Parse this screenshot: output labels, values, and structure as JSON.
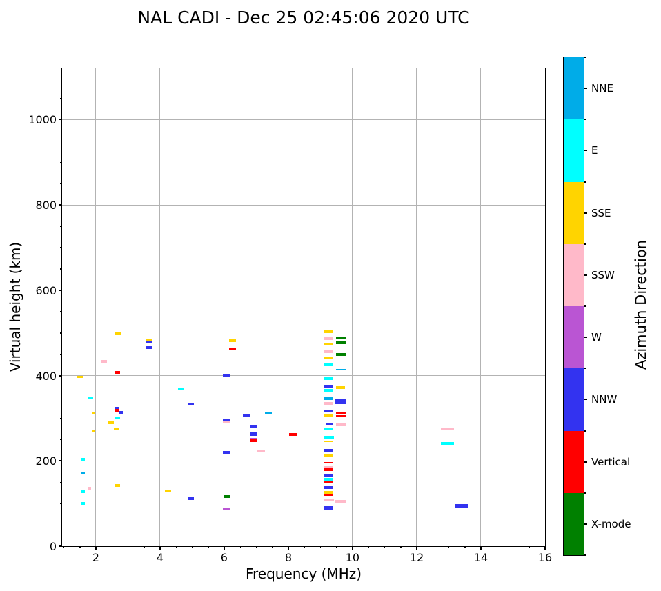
{
  "chart_data": {
    "type": "scatter",
    "title": "NAL CADI - Dec 25 02:45:06 2020 UTC",
    "xlabel": "Frequency (MHz)",
    "ylabel": "Virtual height (km)",
    "xlim": [
      0.95,
      16
    ],
    "ylim": [
      0,
      1120
    ],
    "x_ticks": [
      2,
      4,
      6,
      8,
      10,
      12,
      14,
      16
    ],
    "y_ticks": [
      0,
      200,
      400,
      600,
      800,
      1000
    ],
    "x_minor_step": 0.5,
    "y_minor_step": 50,
    "grid": true,
    "legend_position": "right-colorbar",
    "colorbar": {
      "label": "Azimuth Direction",
      "categories": [
        {
          "key": "NNE",
          "label": "NNE",
          "color": "#00ACE8"
        },
        {
          "key": "E",
          "label": "E",
          "color": "#00FFFF"
        },
        {
          "key": "SSE",
          "label": "SSE",
          "color": "#FFD400"
        },
        {
          "key": "SSW",
          "label": "SSW",
          "color": "#FFB9C9"
        },
        {
          "key": "W",
          "label": "W",
          "color": "#BA55D3"
        },
        {
          "key": "NNW",
          "label": "NNW",
          "color": "#3333F0"
        },
        {
          "key": "V",
          "label": "Vertical",
          "color": "#FF0000"
        },
        {
          "key": "X",
          "label": "X-mode",
          "color": "#008000"
        }
      ]
    },
    "point_format": [
      "freq_mhz",
      "height_km",
      "azimuth_key",
      "width_px",
      "thickness_px"
    ],
    "points": [
      [
        2.67,
        497,
        "SSE",
        9,
        4
      ],
      [
        2.27,
        433,
        "SSW",
        8,
        4
      ],
      [
        2.67,
        407,
        "V",
        8,
        4
      ],
      [
        1.51,
        396,
        "SSE",
        8,
        3
      ],
      [
        1.83,
        347,
        "E",
        8,
        4
      ],
      [
        2.67,
        323,
        "NNW",
        6,
        5
      ],
      [
        2.66,
        318,
        "V",
        6,
        5
      ],
      [
        2.78,
        313,
        "NNW",
        6,
        4
      ],
      [
        1.94,
        311,
        "SSE",
        4,
        3
      ],
      [
        2.67,
        300,
        "E",
        7,
        4
      ],
      [
        2.47,
        289,
        "SSE",
        8,
        4
      ],
      [
        2.65,
        275,
        "SSE",
        8,
        4
      ],
      [
        1.94,
        270,
        "SSE",
        4,
        3
      ],
      [
        1.61,
        204,
        "E",
        5,
        4
      ],
      [
        1.61,
        172,
        "NNE",
        5,
        4
      ],
      [
        2.67,
        143,
        "SSE",
        8,
        4
      ],
      [
        1.8,
        135,
        "SSW",
        5,
        4
      ],
      [
        1.61,
        127,
        "E",
        5,
        4
      ],
      [
        1.61,
        100,
        "E",
        5,
        5
      ],
      [
        3.66,
        483,
        "SSE",
        9,
        4
      ],
      [
        3.66,
        478,
        "NNW",
        9,
        4
      ],
      [
        3.66,
        465,
        "NNW",
        9,
        4
      ],
      [
        4.65,
        368,
        "E",
        9,
        4
      ],
      [
        4.97,
        333,
        "NNW",
        9,
        4
      ],
      [
        4.24,
        130,
        "SSE",
        9,
        4
      ],
      [
        4.97,
        111,
        "NNW",
        9,
        4
      ],
      [
        6.26,
        481,
        "SSE",
        10,
        4
      ],
      [
        6.26,
        463,
        "V",
        10,
        4
      ],
      [
        6.06,
        400,
        "NNW",
        10,
        4
      ],
      [
        7.38,
        312,
        "NNE",
        10,
        3
      ],
      [
        6.69,
        306,
        "NNW",
        10,
        4
      ],
      [
        6.06,
        296,
        "NNW",
        10,
        4
      ],
      [
        6.06,
        292,
        "SSW",
        10,
        3
      ],
      [
        6.92,
        280,
        "NNW",
        11,
        5
      ],
      [
        6.92,
        262,
        "NNW",
        11,
        5
      ],
      [
        6.9,
        250,
        "W",
        10,
        4
      ],
      [
        6.92,
        247,
        "V",
        11,
        4
      ],
      [
        7.16,
        222,
        "SSW",
        11,
        3
      ],
      [
        6.06,
        220,
        "NNW",
        10,
        4
      ],
      [
        8.15,
        262,
        "V",
        12,
        4
      ],
      [
        6.09,
        116,
        "X",
        10,
        4
      ],
      [
        6.06,
        88,
        "W",
        10,
        4
      ],
      [
        9.25,
        502,
        "SSE",
        13,
        4
      ],
      [
        9.25,
        486,
        "SSW",
        12,
        4
      ],
      [
        9.25,
        473,
        "SSE",
        12,
        2
      ],
      [
        9.25,
        455,
        "SSW",
        12,
        4
      ],
      [
        9.25,
        441,
        "SSE",
        13,
        4
      ],
      [
        9.25,
        425,
        "E",
        14,
        4
      ],
      [
        9.25,
        393,
        "E",
        14,
        4
      ],
      [
        9.25,
        375,
        "NNW",
        13,
        4
      ],
      [
        9.25,
        365,
        "E",
        14,
        4
      ],
      [
        9.25,
        346,
        "NNE",
        14,
        4
      ],
      [
        9.25,
        335,
        "SSW",
        13,
        4
      ],
      [
        9.25,
        317,
        "NNW",
        13,
        4
      ],
      [
        9.25,
        306,
        "SSE",
        13,
        4
      ],
      [
        9.27,
        286,
        "NNW",
        10,
        4
      ],
      [
        9.25,
        275,
        "E",
        13,
        4
      ],
      [
        9.25,
        256,
        "E",
        15,
        4
      ],
      [
        9.25,
        245,
        "SSE",
        13,
        2
      ],
      [
        9.25,
        225,
        "NNW",
        14,
        4
      ],
      [
        9.25,
        214,
        "SSE",
        14,
        4
      ],
      [
        9.25,
        195,
        "V",
        13,
        2
      ],
      [
        9.25,
        185,
        "SSW",
        14,
        4
      ],
      [
        9.25,
        179,
        "V",
        14,
        4
      ],
      [
        9.25,
        167,
        "NNW",
        13,
        4
      ],
      [
        9.25,
        156,
        "E",
        14,
        4
      ],
      [
        9.25,
        150,
        "V",
        13,
        4
      ],
      [
        9.25,
        138,
        "NNW",
        13,
        4
      ],
      [
        9.25,
        126,
        "SSE",
        13,
        4
      ],
      [
        9.25,
        119,
        "V",
        13,
        2
      ],
      [
        9.25,
        108,
        "SSW",
        15,
        4
      ],
      [
        9.25,
        90,
        "NNW",
        14,
        5
      ],
      [
        9.63,
        488,
        "X",
        14,
        4
      ],
      [
        9.63,
        476,
        "X",
        14,
        4
      ],
      [
        9.63,
        450,
        "X",
        14,
        4
      ],
      [
        9.63,
        413,
        "NNE",
        14,
        2
      ],
      [
        9.63,
        372,
        "SSE",
        13,
        4
      ],
      [
        9.63,
        343,
        "NNW",
        15,
        4
      ],
      [
        9.63,
        336,
        "NNW",
        15,
        4
      ],
      [
        9.63,
        312,
        "V",
        14,
        4
      ],
      [
        9.63,
        306,
        "V",
        14,
        2
      ],
      [
        9.63,
        285,
        "SSW",
        14,
        4
      ],
      [
        9.63,
        105,
        "SSW",
        15,
        4
      ],
      [
        12.95,
        275,
        "SSW",
        19,
        3
      ],
      [
        12.95,
        241,
        "E",
        19,
        4
      ],
      [
        13.38,
        95,
        "NNW",
        19,
        5
      ]
    ]
  }
}
